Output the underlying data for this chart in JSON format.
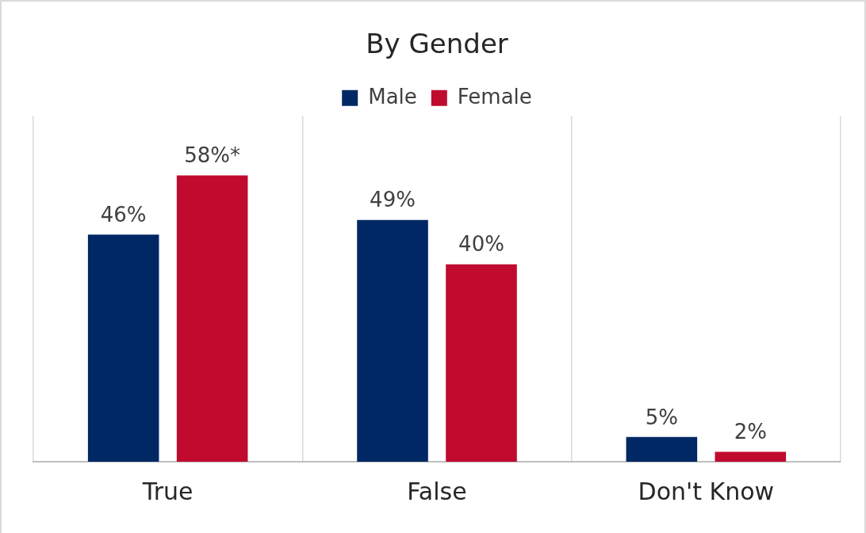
{
  "chart_data": {
    "type": "bar",
    "title": "By Gender",
    "categories": [
      "True",
      "False",
      "Don't Know"
    ],
    "series": [
      {
        "name": "Male",
        "color": "#002864",
        "values": [
          46,
          49,
          5
        ],
        "value_labels": [
          "46%",
          "49%",
          "5%"
        ]
      },
      {
        "name": "Female",
        "color": "#c00a2e",
        "values": [
          58,
          40,
          2
        ],
        "value_labels": [
          "58%*",
          "40%",
          "2%"
        ]
      }
    ],
    "ylim": [
      0,
      70
    ],
    "grid": "x",
    "legend": "top"
  }
}
